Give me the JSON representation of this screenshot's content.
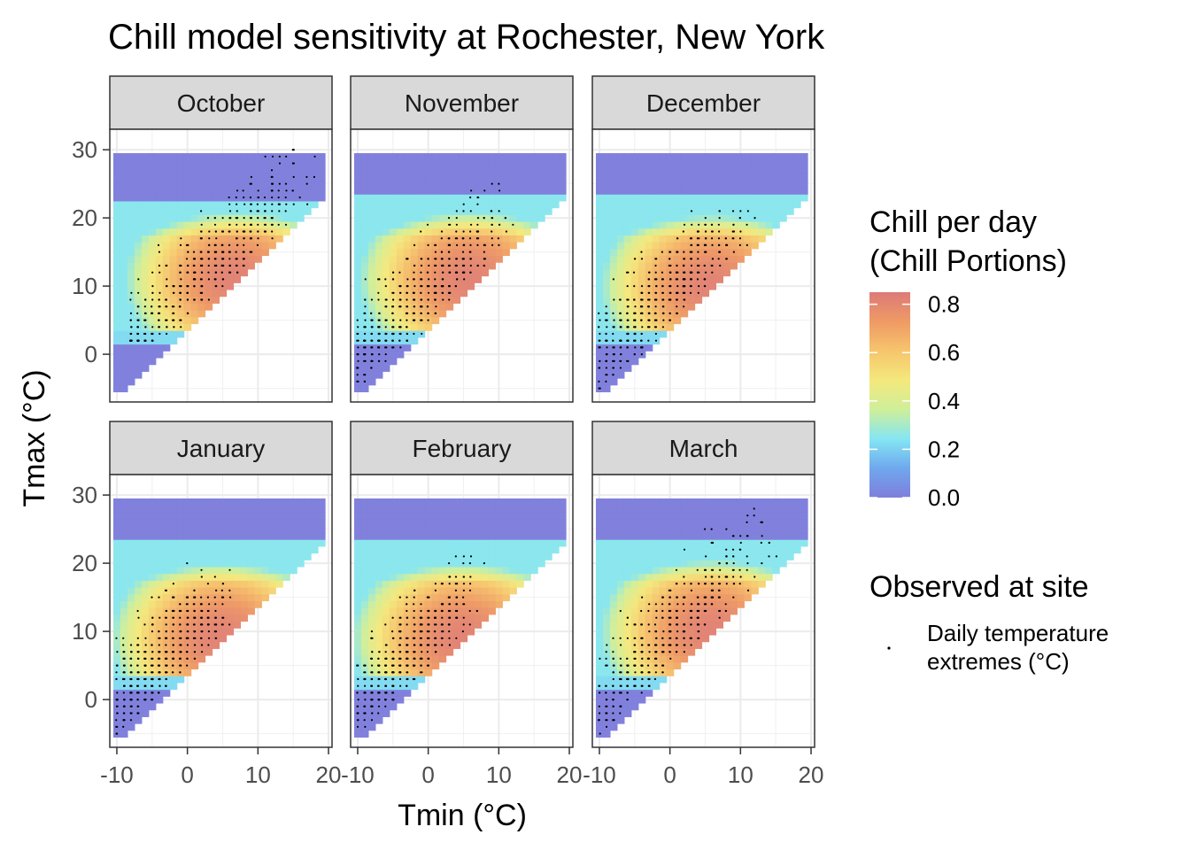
{
  "chart_data": {
    "type": "heatmap",
    "title": "Chill model sensitivity at Rochester, New York",
    "xlabel": "Tmin (°C)",
    "ylabel": "Tmax (°C)",
    "xlim": [
      -11,
      20.5
    ],
    "ylim": [
      -7,
      33
    ],
    "x_ticks": [
      -10,
      0,
      10,
      20
    ],
    "y_ticks": [
      0,
      10,
      20,
      30
    ],
    "x_tick_labels": [
      "-10",
      "0",
      "10",
      "20"
    ],
    "y_tick_labels": [
      "0",
      "10",
      "20",
      "30"
    ],
    "grid": true,
    "panels": [
      {
        "label": "October",
        "fill_extent": {
          "tmin": [
            -10,
            19
          ],
          "tmax": [
            -5,
            29
          ]
        },
        "obs_tmin_range": [
          -8,
          19
        ],
        "obs_tmax_range": [
          2,
          30
        ]
      },
      {
        "label": "November",
        "fill_extent": {
          "tmin": [
            -10,
            19
          ],
          "tmax": [
            -5,
            29
          ]
        },
        "obs_tmin_range": [
          -10,
          13
        ],
        "obs_tmax_range": [
          -4,
          27
        ]
      },
      {
        "label": "December",
        "fill_extent": {
          "tmin": [
            -10,
            19
          ],
          "tmax": [
            -5,
            29
          ]
        },
        "obs_tmin_range": [
          -10,
          12
        ],
        "obs_tmax_range": [
          -5,
          21
        ]
      },
      {
        "label": "January",
        "fill_extent": {
          "tmin": [
            -10,
            19
          ],
          "tmax": [
            -5,
            29
          ]
        },
        "obs_tmin_range": [
          -10,
          7
        ],
        "obs_tmax_range": [
          -5,
          20
        ]
      },
      {
        "label": "February",
        "fill_extent": {
          "tmin": [
            -10,
            19
          ],
          "tmax": [
            -5,
            29
          ]
        },
        "obs_tmin_range": [
          -10,
          8
        ],
        "obs_tmax_range": [
          -5,
          21
        ]
      },
      {
        "label": "March",
        "fill_extent": {
          "tmin": [
            -10,
            19
          ],
          "tmax": [
            -5,
            29
          ]
        },
        "obs_tmin_range": [
          -10,
          16
        ],
        "obs_tmax_range": [
          -5,
          28
        ]
      }
    ],
    "fill_scale": {
      "title_lines": [
        "Chill per day",
        "(Chill Portions)"
      ],
      "min": 0.0,
      "max": 0.85,
      "ticks": [
        0.0,
        0.2,
        0.4,
        0.6,
        0.8
      ],
      "tick_labels": [
        "0.0",
        "0.2",
        "0.4",
        "0.6",
        "0.8"
      ],
      "colors": [
        "#7e7edc",
        "#6fa8ee",
        "#85e6f2",
        "#cfef9a",
        "#f4e87c",
        "#f6c56d",
        "#ef9a65",
        "#dc7a78"
      ]
    },
    "point_legend": {
      "title": "Observed at site",
      "label_lines": [
        "Daily temperature",
        "extremes (°C)"
      ]
    }
  }
}
